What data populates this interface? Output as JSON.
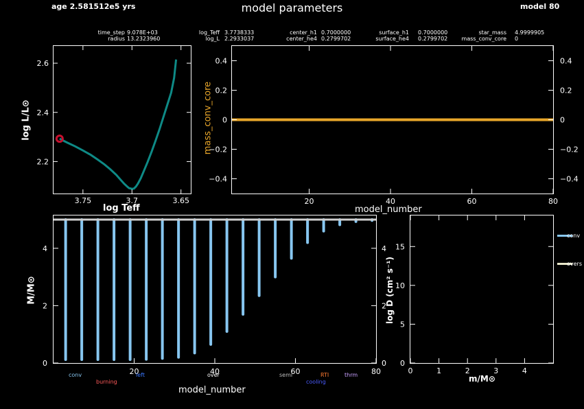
{
  "header": {
    "age": "age 2.581512e5 yrs",
    "title": "model parameters",
    "model": "model 80"
  },
  "info": {
    "columns": [
      {
        "labels": [
          "time_step",
          "radius"
        ],
        "values": [
          "9.078E+03",
          "13.2323960"
        ]
      },
      {
        "labels": [
          "log_Teff",
          "log_L"
        ],
        "values": [
          "3.7738333",
          "2.2933037"
        ]
      },
      {
        "labels": [
          "center_h1",
          "center_he4"
        ],
        "values": [
          "0.7000000",
          "0.2799702"
        ]
      },
      {
        "labels": [
          "surface_h1",
          "surface_he4"
        ],
        "values": [
          "0.7000000",
          "0.2799702"
        ]
      },
      {
        "labels": [
          "star_mass",
          "mass_conv_core"
        ],
        "values": [
          "4.9999905",
          "0"
        ]
      }
    ]
  },
  "colors": {
    "hr_track": "#0e8a86",
    "hr_marker": "#c8102e",
    "mass_conv_core": "#e8a62a",
    "conv": "#87c6f0",
    "overs": "#e8e6c8",
    "burning": "#ff5a5a",
    "left": "#3a78ff",
    "semi": "#bdbdbd",
    "rti": "#ff7a30",
    "cooling": "#4a5cff",
    "thrm": "#c8a0ff"
  },
  "chart_data": [
    {
      "type": "line",
      "name": "hr_diagram",
      "xlabel": "log Teff",
      "ylabel": "log L/L⊙",
      "xlim": [
        3.78,
        3.64
      ],
      "ylim": [
        2.07,
        2.67
      ],
      "xticks": [
        "3.75",
        "3.7",
        "3.65"
      ],
      "yticks": [
        "2.2",
        "2.4",
        "2.6"
      ],
      "x": [
        3.7738,
        3.77,
        3.765,
        3.758,
        3.75,
        3.742,
        3.735,
        3.728,
        3.722,
        3.716,
        3.712,
        3.708,
        3.705,
        3.703,
        3.7,
        3.698,
        3.696,
        3.694,
        3.691,
        3.688,
        3.684,
        3.68,
        3.676,
        3.672,
        3.668,
        3.664,
        3.66,
        3.657,
        3.655
      ],
      "y": [
        2.293,
        2.285,
        2.275,
        2.262,
        2.245,
        2.227,
        2.208,
        2.188,
        2.168,
        2.146,
        2.128,
        2.11,
        2.099,
        2.092,
        2.089,
        2.09,
        2.098,
        2.11,
        2.132,
        2.16,
        2.198,
        2.24,
        2.284,
        2.33,
        2.38,
        2.43,
        2.48,
        2.54,
        2.615
      ],
      "marker": {
        "x": 3.7738,
        "y": 2.293
      }
    },
    {
      "type": "line",
      "name": "mass_conv_core_history",
      "xlabel": "model_number",
      "ylabel": "mass_conv_core",
      "xlim": [
        1,
        80
      ],
      "ylim": [
        -0.5,
        0.5
      ],
      "xticks": [
        "20",
        "40",
        "60",
        "80"
      ],
      "yticks": [
        "0.4",
        "0.2",
        "0",
        "−0.2",
        "−0.4"
      ],
      "x": [
        1,
        80
      ],
      "y": [
        0,
        0
      ]
    },
    {
      "type": "bar",
      "name": "kippenhahn",
      "xlabel": "model_number",
      "ylabel": "M/M⊙",
      "right_label": "log D (cm² s⁻¹)",
      "xlim": [
        0,
        80
      ],
      "ylim": [
        0,
        5
      ],
      "xticks": [
        "20",
        "40",
        "60",
        "80"
      ],
      "yticks_left": [
        "0",
        "2",
        "4"
      ],
      "yticks_right": [
        "0",
        "2",
        "4"
      ],
      "top_mass": 4.9999905,
      "x": [
        3,
        7,
        11,
        15,
        19,
        23,
        27,
        31,
        35,
        39,
        43,
        47,
        51,
        55,
        59,
        63,
        67,
        71,
        75,
        79
      ],
      "conv_bottom": [
        0.12,
        0.12,
        0.12,
        0.12,
        0.12,
        0.13,
        0.16,
        0.2,
        0.35,
        0.65,
        1.1,
        1.7,
        2.35,
        3.0,
        3.65,
        4.2,
        4.6,
        4.82,
        4.93,
        4.97
      ],
      "legend": [
        "conv",
        "burning",
        "left",
        "over",
        "semi",
        "cooling",
        "RTI",
        "thrm"
      ]
    },
    {
      "type": "line",
      "name": "mixing_profile",
      "xlabel": "m/M⊙",
      "ylabel": "log D (cm² s⁻¹)",
      "xlim": [
        0,
        5
      ],
      "ylim": [
        0,
        19
      ],
      "xticks": [
        "0",
        "1",
        "2",
        "3",
        "4"
      ],
      "yticks": [
        "0",
        "5",
        "10",
        "15"
      ],
      "series": [
        {
          "name": "conv",
          "values": []
        },
        {
          "name": "overs",
          "values": []
        }
      ]
    }
  ]
}
